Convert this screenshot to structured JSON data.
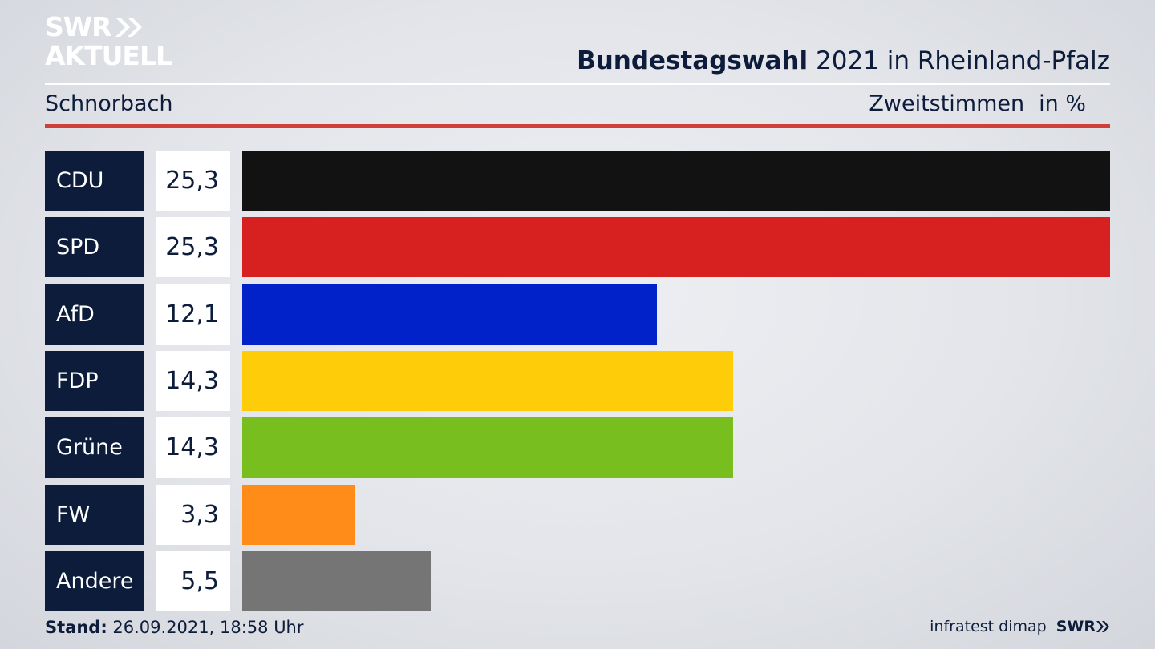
{
  "logo": {
    "line1": "SWR",
    "line2": "AKTUELL"
  },
  "header": {
    "title_bold": "Bundestagswahl",
    "title_rest": "2021 in Rheinland-Pfalz",
    "subtitle": "Schnorbach",
    "measure": "Zweitstimmen",
    "unit": "in %"
  },
  "chart_data": {
    "type": "bar",
    "title": "Bundestagswahl 2021 in Rheinland-Pfalz",
    "subtitle": "Schnorbach",
    "categories": [
      "CDU",
      "SPD",
      "AfD",
      "FDP",
      "Grüne",
      "FW",
      "Andere"
    ],
    "labels": [
      "25,3",
      "25,3",
      "12,1",
      "14,3",
      "14,3",
      "3,3",
      "5,5"
    ],
    "values": [
      25.3,
      25.3,
      12.1,
      14.3,
      14.3,
      3.3,
      5.5
    ],
    "colors": [
      "#121212",
      "#d72020",
      "#0022c8",
      "#ffcc0a",
      "#78be1e",
      "#ff8c19",
      "#757575"
    ],
    "xlim": [
      0,
      25.3
    ],
    "orientation": "horizontal",
    "grid": false,
    "legend": "none"
  },
  "footer": {
    "stand_label": "Stand:",
    "stand_value": "26.09.2021, 18:58 Uhr",
    "source": "infratest dimap",
    "brand": "SWR"
  }
}
